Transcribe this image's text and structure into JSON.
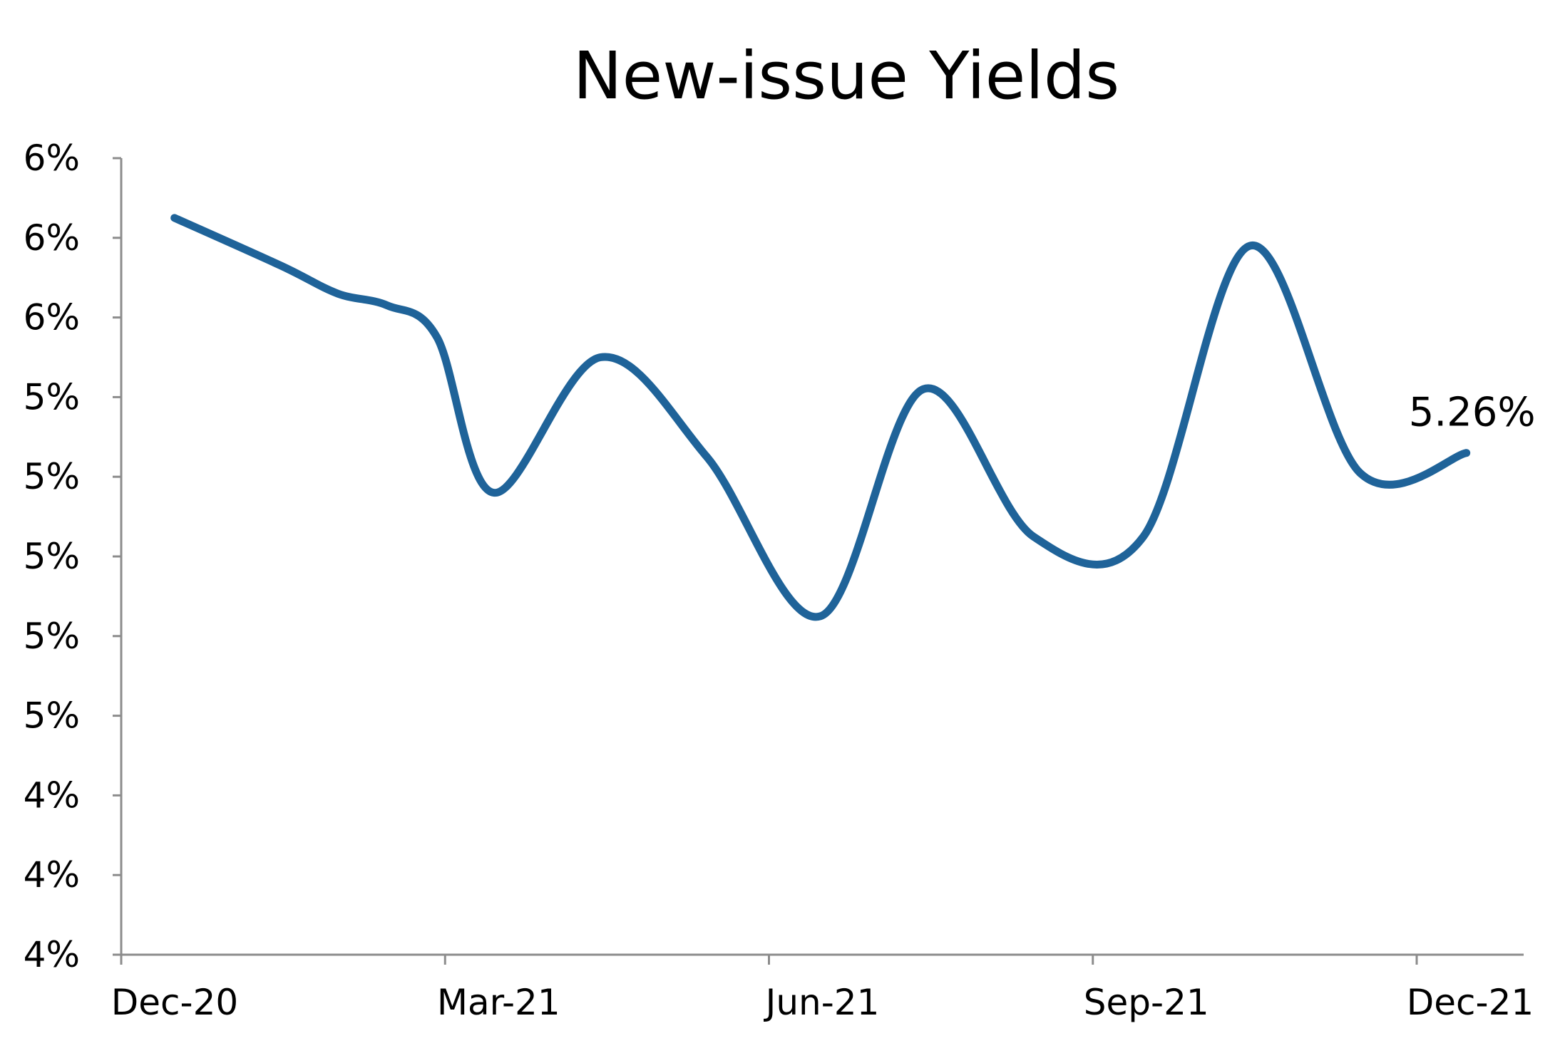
{
  "chart_data": {
    "type": "line",
    "title": "New-issue Yields",
    "xlabel": "",
    "ylabel": "",
    "grid": false,
    "legend": "none",
    "x_tick_labels": [
      "Dec-20",
      "Mar-21",
      "Jun-21",
      "Sep-21",
      "Dec-21"
    ],
    "y_tick_labels": [
      "4%",
      "4%",
      "4%",
      "5%",
      "5%",
      "5%",
      "5%",
      "5%",
      "6%",
      "6%",
      "6%"
    ],
    "ylim": [
      4.0,
      6.0
    ],
    "xlim": [
      "2020-12-01",
      "2021-12-01"
    ],
    "series": [
      {
        "color": "#1f6399",
        "points": [
          {
            "x": "2020-12-16",
            "y": 5.85
          },
          {
            "x": "2021-01-15",
            "y": 5.73
          },
          {
            "x": "2021-01-31",
            "y": 5.66
          },
          {
            "x": "2021-02-14",
            "y": 5.63
          },
          {
            "x": "2021-02-28",
            "y": 5.55
          },
          {
            "x": "2021-03-16",
            "y": 5.16
          },
          {
            "x": "2021-04-15",
            "y": 5.5
          },
          {
            "x": "2021-05-15",
            "y": 5.25
          },
          {
            "x": "2021-06-16",
            "y": 4.85
          },
          {
            "x": "2021-07-15",
            "y": 5.42
          },
          {
            "x": "2021-08-15",
            "y": 5.05
          },
          {
            "x": "2021-09-15",
            "y": 5.05
          },
          {
            "x": "2021-10-15",
            "y": 5.78
          },
          {
            "x": "2021-11-15",
            "y": 5.21
          },
          {
            "x": "2021-12-15",
            "y": 5.26
          }
        ]
      }
    ],
    "annotations": [
      {
        "text": "5.26%",
        "x": "2021-12-15",
        "y": 5.26
      }
    ]
  }
}
